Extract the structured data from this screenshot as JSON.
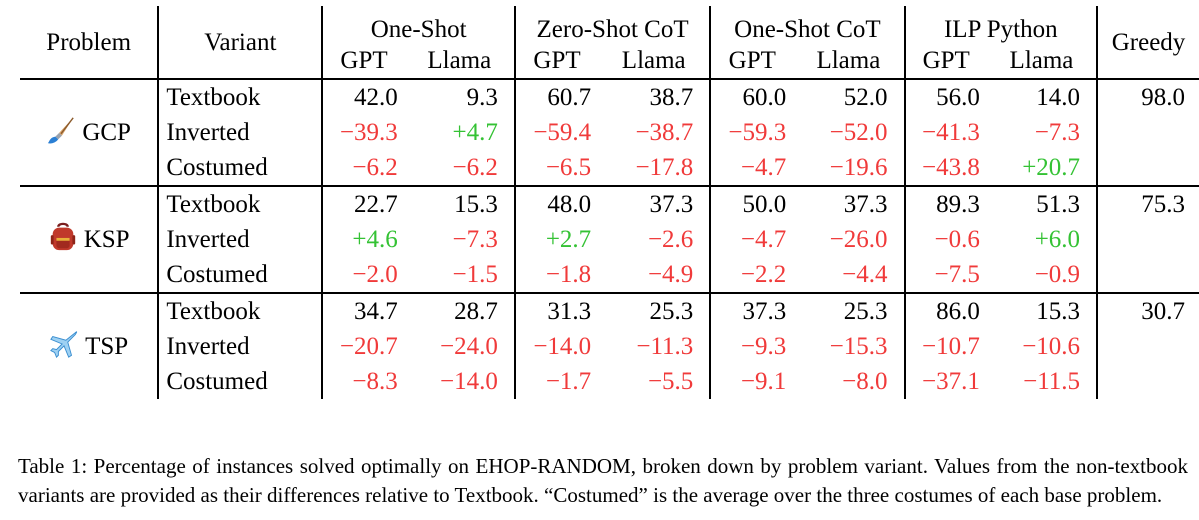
{
  "table": {
    "headers": {
      "problem": "Problem",
      "variant": "Variant",
      "groups": [
        "One-Shot",
        "Zero-Shot CoT",
        "One-Shot CoT",
        "ILP Python"
      ],
      "models": [
        "GPT",
        "Llama"
      ],
      "greedy": "Greedy"
    },
    "rows": [
      {
        "problem": "GCP",
        "icon": "paintbrush-icon",
        "variants": [
          {
            "name": "Textbook",
            "values": [
              "42.0",
              "9.3",
              "60.7",
              "38.7",
              "60.0",
              "52.0",
              "56.0",
              "14.0"
            ],
            "greedy": "98.0"
          },
          {
            "name": "Inverted",
            "values": [
              "−39.3",
              "+4.7",
              "−59.4",
              "−38.7",
              "−59.3",
              "−52.0",
              "−41.3",
              "−7.3"
            ],
            "greedy": ""
          },
          {
            "name": "Costumed",
            "values": [
              "−6.2",
              "−6.2",
              "−6.5",
              "−17.8",
              "−4.7",
              "−19.6",
              "−43.8",
              "+20.7"
            ],
            "greedy": ""
          }
        ]
      },
      {
        "problem": "KSP",
        "icon": "backpack-icon",
        "variants": [
          {
            "name": "Textbook",
            "values": [
              "22.7",
              "15.3",
              "48.0",
              "37.3",
              "50.0",
              "37.3",
              "89.3",
              "51.3"
            ],
            "greedy": "75.3"
          },
          {
            "name": "Inverted",
            "values": [
              "+4.6",
              "−7.3",
              "+2.7",
              "−2.6",
              "−4.7",
              "−26.0",
              "−0.6",
              "+6.0"
            ],
            "greedy": ""
          },
          {
            "name": "Costumed",
            "values": [
              "−2.0",
              "−1.5",
              "−1.8",
              "−4.9",
              "−2.2",
              "−4.4",
              "−7.5",
              "−0.9"
            ],
            "greedy": ""
          }
        ]
      },
      {
        "problem": "TSP",
        "icon": "airplane-icon",
        "variants": [
          {
            "name": "Textbook",
            "values": [
              "34.7",
              "28.7",
              "31.3",
              "25.3",
              "37.3",
              "25.3",
              "86.0",
              "15.3"
            ],
            "greedy": "30.7"
          },
          {
            "name": "Inverted",
            "values": [
              "−20.7",
              "−24.0",
              "−14.0",
              "−11.3",
              "−9.3",
              "−15.3",
              "−10.7",
              "−10.6"
            ],
            "greedy": ""
          },
          {
            "name": "Costumed",
            "values": [
              "−8.3",
              "−14.0",
              "−1.7",
              "−5.5",
              "−9.1",
              "−8.0",
              "−37.1",
              "−11.5"
            ],
            "greedy": ""
          }
        ]
      }
    ]
  },
  "colors": {
    "negative": "#f03a3a",
    "positive": "#34c234"
  },
  "caption": "Table 1: Percentage of instances solved optimally on EHOP-RANDOM, broken down by problem variant. Values from the non-textbook variants are provided as their differences relative to Textbook. “Costumed” is the average over the three costumes of each base problem."
}
